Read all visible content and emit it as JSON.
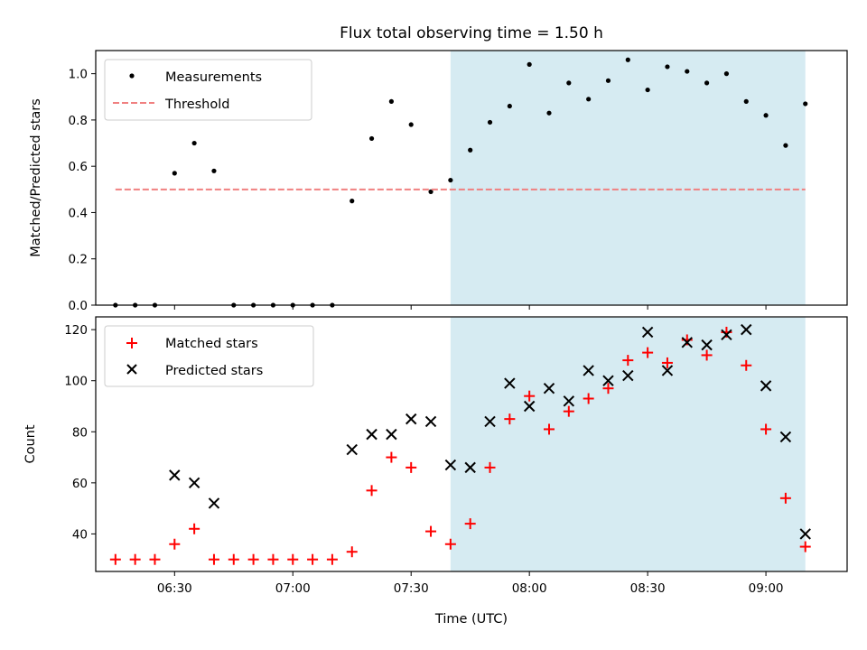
{
  "title": "Flux total observing time = 1.50 h",
  "colors": {
    "shade": "#add8e6",
    "measurement": "#000000",
    "threshold": "#f08080",
    "matched": "#ff0000",
    "predicted": "#000000"
  },
  "chart_data": [
    {
      "type": "scatter",
      "ylabel": "Matched/Predicted stars",
      "xlabel": "",
      "x_range_minutes": [
        370.0,
        560.6
      ],
      "ylim": [
        0,
        1.1
      ],
      "y_ticks": [
        0.0,
        0.2,
        0.4,
        0.6,
        0.8,
        1.0
      ],
      "y_tick_labels": [
        "0.0",
        "0.2",
        "0.4",
        "0.6",
        "0.8",
        "1.0"
      ],
      "x_ticks_minutes": [
        390,
        420,
        450,
        480,
        510,
        540
      ],
      "show_x_tick_labels": false,
      "shaded_region": {
        "from": "07:40",
        "to": "09:10"
      },
      "legend": {
        "placement": "upper left",
        "entries": [
          "Measurements",
          "Threshold"
        ]
      },
      "series": [
        {
          "name": "Measurements",
          "style": "dot",
          "x": [
            "06:15",
            "06:20",
            "06:25",
            "06:30",
            "06:35",
            "06:40",
            "06:45",
            "06:50",
            "06:55",
            "07:00",
            "07:05",
            "07:10",
            "07:15",
            "07:20",
            "07:25",
            "07:30",
            "07:35",
            "07:40",
            "07:45",
            "07:50",
            "07:55",
            "08:00",
            "08:05",
            "08:10",
            "08:15",
            "08:20",
            "08:25",
            "08:30",
            "08:35",
            "08:40",
            "08:45",
            "08:50",
            "08:55",
            "09:00",
            "09:05",
            "09:10"
          ],
          "y": [
            0.0,
            0.0,
            0.0,
            0.57,
            0.7,
            0.58,
            0.0,
            0.0,
            0.0,
            0.0,
            0.0,
            0.0,
            0.45,
            0.72,
            0.88,
            0.78,
            0.49,
            0.54,
            0.67,
            0.79,
            0.86,
            1.04,
            0.83,
            0.96,
            0.89,
            0.97,
            1.06,
            0.93,
            1.03,
            1.01,
            0.96,
            1.0,
            0.88,
            0.82,
            0.69,
            0.87
          ]
        },
        {
          "name": "Threshold",
          "style": "dashed-line",
          "x": [
            "06:15",
            "09:10"
          ],
          "y": [
            0.5,
            0.5
          ]
        }
      ]
    },
    {
      "type": "scatter",
      "ylabel": "Count",
      "xlabel": "Time (UTC)",
      "x_range_minutes": [
        370.0,
        560.6
      ],
      "ylim": [
        25.3,
        125
      ],
      "y_ticks": [
        40,
        60,
        80,
        100,
        120
      ],
      "y_tick_labels": [
        "40",
        "60",
        "80",
        "100",
        "120"
      ],
      "x_ticks_minutes": [
        390,
        420,
        450,
        480,
        510,
        540
      ],
      "x_tick_labels": [
        "06:30",
        "07:00",
        "07:30",
        "08:00",
        "08:30",
        "09:00"
      ],
      "shaded_region": {
        "from": "07:40",
        "to": "09:10"
      },
      "legend": {
        "placement": "upper left",
        "entries": [
          "Matched stars",
          "Predicted stars"
        ]
      },
      "series": [
        {
          "name": "Matched stars",
          "style": "plus",
          "x": [
            "06:15",
            "06:20",
            "06:25",
            "06:30",
            "06:35",
            "06:40",
            "06:45",
            "06:50",
            "06:55",
            "07:00",
            "07:05",
            "07:10",
            "07:15",
            "07:20",
            "07:25",
            "07:30",
            "07:35",
            "07:40",
            "07:45",
            "07:50",
            "07:55",
            "08:00",
            "08:05",
            "08:10",
            "08:15",
            "08:20",
            "08:25",
            "08:30",
            "08:35",
            "08:40",
            "08:45",
            "08:50",
            "08:55",
            "09:00",
            "09:05",
            "09:10"
          ],
          "y": [
            30,
            30,
            30,
            36,
            42,
            30,
            30,
            30,
            30,
            30,
            30,
            30,
            33,
            57,
            70,
            66,
            41,
            36,
            44,
            66,
            85,
            94,
            81,
            88,
            93,
            97,
            108,
            111,
            107,
            116,
            110,
            119,
            106,
            81,
            54,
            35
          ]
        },
        {
          "name": "Predicted stars",
          "style": "x",
          "x": [
            "06:30",
            "06:35",
            "06:40",
            "07:15",
            "07:20",
            "07:25",
            "07:30",
            "07:35",
            "07:40",
            "07:45",
            "07:50",
            "07:55",
            "08:00",
            "08:05",
            "08:10",
            "08:15",
            "08:20",
            "08:25",
            "08:30",
            "08:35",
            "08:40",
            "08:45",
            "08:50",
            "08:55",
            "09:00",
            "09:05",
            "09:10"
          ],
          "y": [
            63,
            60,
            52,
            73,
            79,
            79,
            85,
            84,
            67,
            66,
            84,
            99,
            90,
            97,
            92,
            104,
            100,
            102,
            119,
            104,
            115,
            114,
            118,
            120,
            98,
            78,
            40
          ]
        }
      ]
    }
  ]
}
